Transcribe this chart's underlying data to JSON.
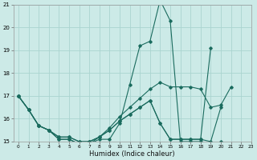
{
  "xlabel": "Humidex (Indice chaleur)",
  "background_color": "#cceae7",
  "grid_color": "#aad4d0",
  "line_color": "#1a6b5e",
  "series": [
    {
      "x": [
        0,
        1,
        2,
        3,
        4,
        5,
        6,
        7,
        8,
        9,
        10,
        11,
        12,
        13,
        14,
        15,
        16,
        17,
        18,
        19,
        20,
        21,
        22,
        23
      ],
      "y": [
        17.0,
        16.4,
        15.7,
        15.5,
        15.1,
        15.1,
        14.9,
        14.9,
        15.1,
        15.1,
        15.8,
        17.5,
        19.2,
        19.4,
        21.2,
        20.3,
        15.0,
        15.0,
        15.0,
        14.8,
        15.0,
        14.9,
        14.9,
        14.8
      ]
    },
    {
      "x": [
        0,
        1,
        2,
        3,
        4,
        5,
        6,
        7,
        8,
        9,
        10,
        11,
        12,
        13,
        14,
        15,
        16,
        17,
        18,
        19,
        20,
        21
      ],
      "y": [
        17.0,
        16.4,
        15.7,
        15.5,
        15.1,
        15.1,
        14.9,
        14.9,
        15.2,
        15.6,
        16.1,
        16.5,
        16.9,
        17.3,
        17.6,
        17.4,
        17.4,
        17.4,
        17.3,
        16.5,
        16.6,
        17.4
      ]
    },
    {
      "x": [
        0,
        1,
        2,
        3,
        4,
        5,
        6,
        7,
        8,
        9,
        10,
        11,
        12,
        13,
        14,
        15,
        16,
        17,
        18,
        19,
        20
      ],
      "y": [
        17.0,
        16.4,
        15.7,
        15.5,
        15.2,
        15.2,
        15.0,
        15.0,
        15.2,
        15.5,
        15.9,
        16.2,
        16.5,
        16.8,
        15.8,
        15.1,
        15.1,
        15.1,
        15.1,
        15.0,
        16.5
      ]
    },
    {
      "x": [
        0,
        1,
        2,
        3,
        4,
        5,
        6,
        7,
        8,
        9,
        10,
        11,
        12,
        13,
        14,
        15,
        16,
        17,
        18,
        19
      ],
      "y": [
        17.0,
        16.4,
        15.7,
        15.5,
        15.2,
        15.2,
        15.0,
        15.0,
        15.2,
        15.5,
        15.9,
        16.2,
        16.5,
        16.8,
        15.8,
        15.1,
        15.1,
        15.1,
        15.1,
        19.1
      ]
    }
  ],
  "ylim": [
    15,
    21
  ],
  "xlim": [
    -0.5,
    23
  ],
  "yticks": [
    15,
    16,
    17,
    18,
    19,
    20,
    21
  ],
  "xticks": [
    0,
    1,
    2,
    3,
    4,
    5,
    6,
    7,
    8,
    9,
    10,
    11,
    12,
    13,
    14,
    15,
    16,
    17,
    18,
    19,
    20,
    21,
    22,
    23
  ],
  "tick_fontsize": 5,
  "xlabel_fontsize": 6
}
